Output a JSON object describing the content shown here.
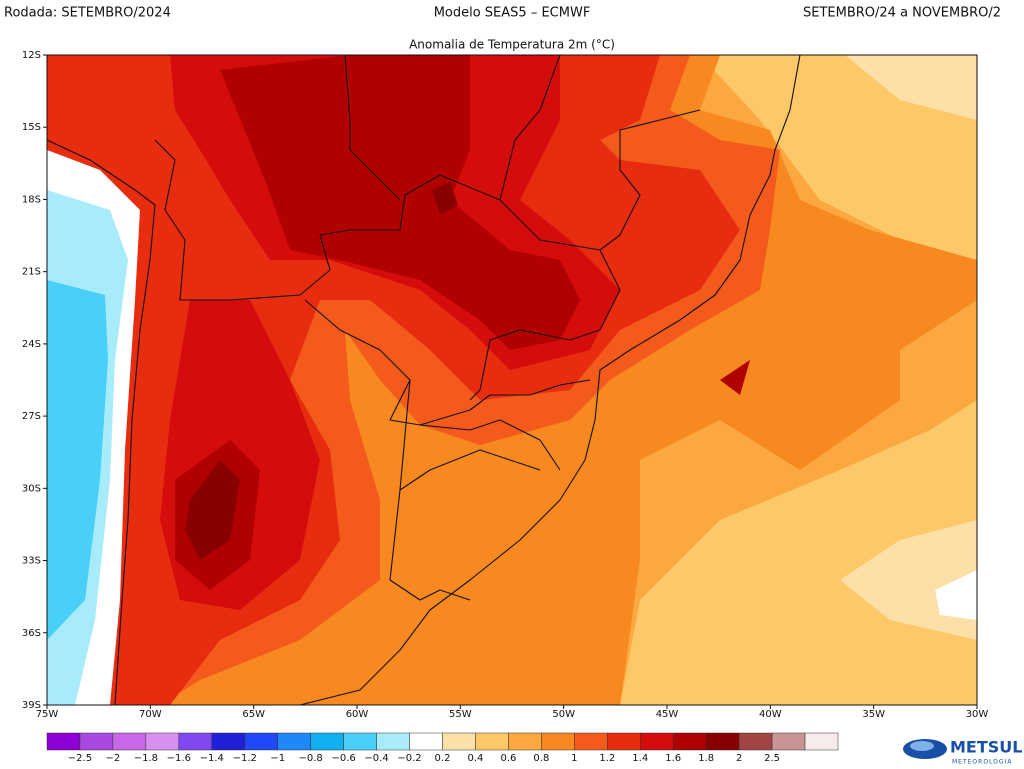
{
  "header": {
    "left": "Rodada: SETEMBRO/2024",
    "center": "Modelo SEAS5 – ECMWF",
    "right": "SETEMBRO/24 a NOVEMBRO/2"
  },
  "subtitle": "Anomalia de Temperatura 2m (°C)",
  "lat_labels": [
    "12S",
    "15S",
    "18S",
    "21S",
    "24S",
    "27S",
    "30S",
    "33S",
    "36S",
    "39S"
  ],
  "lon_labels": [
    "75W",
    "70W",
    "65W",
    "60W",
    "55W",
    "50W",
    "45W",
    "40W",
    "35W",
    "30W"
  ],
  "colorbar": {
    "colors": [
      "#8c00d4",
      "#a848e0",
      "#c868e8",
      "#d890f0",
      "#8048f0",
      "#2020d8",
      "#2048f8",
      "#1e88f8",
      "#10b0f0",
      "#48d0f8",
      "#a8ecfc",
      "#ffffff",
      "#fde0a8",
      "#fcc868",
      "#fca840",
      "#f88820",
      "#f45a1c",
      "#e82c10",
      "#d40c0c",
      "#b00000",
      "#880000",
      "#a04444",
      "#c89494",
      "#f6ecec"
    ],
    "labels": [
      "−2.5",
      "−2",
      "−1.8",
      "−1.6",
      "−1.4",
      "−1.2",
      "−1",
      "−0.8",
      "−0.6",
      "−0.4",
      "−0.2",
      "0.2",
      "0.4",
      "0.6",
      "0.8",
      "1",
      "1.2",
      "1.4",
      "1.6",
      "1.8",
      "2",
      "2.5"
    ]
  },
  "logo": {
    "text": "METSUL",
    "subtext": "METEOROLOGIA"
  }
}
